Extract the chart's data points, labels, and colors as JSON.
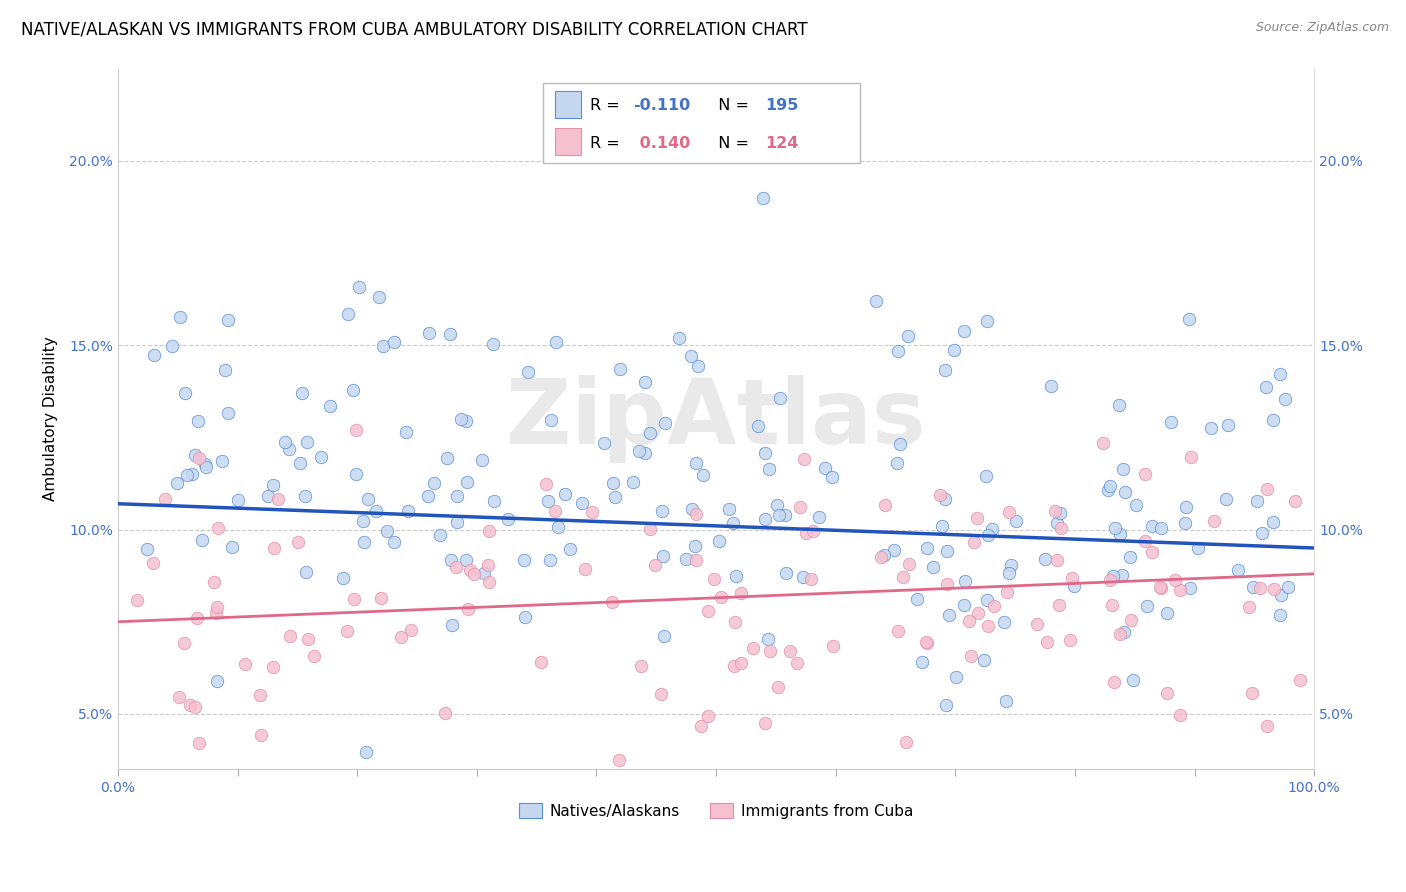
{
  "title": "NATIVE/ALASKAN VS IMMIGRANTS FROM CUBA AMBULATORY DISABILITY CORRELATION CHART",
  "source": "Source: ZipAtlas.com",
  "ylabel": "Ambulatory Disability",
  "xlim": [
    0.0,
    100.0
  ],
  "ylim": [
    3.5,
    22.5
  ],
  "yticks": [
    5.0,
    10.0,
    15.0,
    20.0
  ],
  "yticklabels": [
    "5.0%",
    "10.0%",
    "15.0%",
    "20.0%"
  ],
  "xticks": [
    0,
    10,
    20,
    30,
    40,
    50,
    60,
    70,
    80,
    90,
    100
  ],
  "blue_color": "#c5d8f0",
  "blue_edge_color": "#5b8fd4",
  "pink_color": "#f5c0d0",
  "pink_edge_color": "#e090a8",
  "blue_line_color": "#2255bb",
  "pink_line_color": "#e06888",
  "legend_blue_label": "Natives/Alaskans",
  "legend_pink_label": "Immigrants from Cuba",
  "R_blue": -0.11,
  "N_blue": 195,
  "R_pink": 0.14,
  "N_pink": 124,
  "watermark": "ZipAtlas",
  "title_fontsize": 12,
  "tick_fontsize": 10,
  "legend_fontsize": 11,
  "ylabel_fontsize": 11,
  "blue_line_y0": 10.7,
  "blue_line_y1": 9.5,
  "pink_line_y0": 7.5,
  "pink_line_y1": 8.8
}
